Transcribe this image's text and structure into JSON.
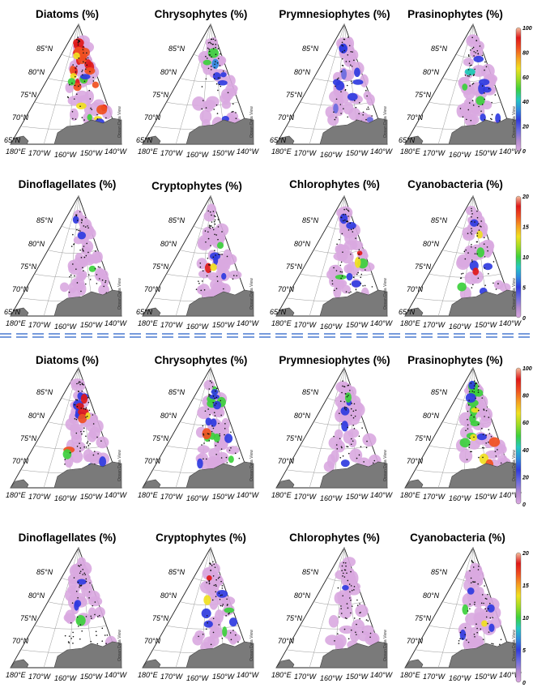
{
  "colorbar_colors": [
    "#d9a8e0",
    "#b48bd0",
    "#6a6be0",
    "#2f3be0",
    "#2f8ae0",
    "#25c8c0",
    "#3cd03c",
    "#9fdc24",
    "#f0e020",
    "#f5a020",
    "#f05020",
    "#e01818",
    "#f2c2a0"
  ],
  "colorbar_ticks": {
    "main": [
      "100",
      "80",
      "60",
      "40",
      "20",
      "0"
    ],
    "minor": [
      "20",
      "15",
      "10",
      "5",
      "0"
    ]
  },
  "map_labels": {
    "lat": [
      "85°N",
      "80°N",
      "75°N",
      "70°N",
      "65°N"
    ],
    "lon": [
      "180°E",
      "170°W",
      "160°W",
      "150°W",
      "140°W"
    ],
    "watermark": "Ocean Data View"
  },
  "chart_data": [
    {
      "section": "top",
      "type": "heatmap",
      "title": "Diatoms (%)",
      "scale": [
        0,
        100
      ],
      "dominant_level": "high (60–100) across shelf and central basin"
    },
    {
      "section": "top",
      "type": "heatmap",
      "title": "Chrysophytes (%)",
      "scale": [
        0,
        100
      ],
      "dominant_level": "low (0–20), patches up to 40"
    },
    {
      "section": "top",
      "type": "heatmap",
      "title": "Prymnesiophytes (%)",
      "scale": [
        0,
        100
      ],
      "dominant_level": "low (0–30)"
    },
    {
      "section": "top",
      "type": "heatmap",
      "title": "Prasinophytes (%)",
      "scale": [
        0,
        100
      ],
      "dominant_level": "low (0–40)"
    },
    {
      "section": "top",
      "type": "heatmap",
      "title": "Dinoflagellates (%)",
      "scale": [
        0,
        20
      ],
      "dominant_level": "near 0, isolated values ~5"
    },
    {
      "section": "top",
      "type": "heatmap",
      "title": "Cryptophytes (%)",
      "scale": [
        0,
        20
      ],
      "dominant_level": "low, southern hotspot up to 20"
    },
    {
      "section": "top",
      "type": "heatmap",
      "title": "Chlorophytes (%)",
      "scale": [
        0,
        20
      ],
      "dominant_level": "patches 10–20 near 78–80°N"
    },
    {
      "section": "top",
      "type": "heatmap",
      "title": "Cyanobacteria (%)",
      "scale": [
        0,
        20
      ],
      "dominant_level": "patches 10–20 near 75–78°N"
    },
    {
      "section": "bottom",
      "type": "heatmap",
      "title": "Diatoms (%)",
      "scale": [
        0,
        100
      ],
      "dominant_level": "mixed, high (80–100) on southern shelf"
    },
    {
      "section": "bottom",
      "type": "heatmap",
      "title": "Chrysophytes (%)",
      "scale": [
        0,
        100
      ],
      "dominant_level": "moderate (20–50)"
    },
    {
      "section": "bottom",
      "type": "heatmap",
      "title": "Prymnesiophytes (%)",
      "scale": [
        0,
        100
      ],
      "dominant_level": "low (0–30)"
    },
    {
      "section": "bottom",
      "type": "heatmap",
      "title": "Prasinophytes (%)",
      "scale": [
        0,
        100
      ],
      "dominant_level": "moderate (40–60)"
    },
    {
      "section": "bottom",
      "type": "heatmap",
      "title": "Dinoflagellates (%)",
      "scale": [
        0,
        20
      ],
      "dominant_level": "near 0, patches ~5"
    },
    {
      "section": "bottom",
      "type": "heatmap",
      "title": "Cryptophytes (%)",
      "scale": [
        0,
        20
      ],
      "dominant_level": "low, southern hotspot up to 20"
    },
    {
      "section": "bottom",
      "type": "heatmap",
      "title": "Chlorophytes (%)",
      "scale": [
        0,
        20
      ],
      "dominant_level": "near 0"
    },
    {
      "section": "bottom",
      "type": "heatmap",
      "title": "Cyanobacteria (%)",
      "scale": [
        0,
        20
      ],
      "dominant_level": "low, southern patches ~5"
    }
  ],
  "panel_blobs": [
    [
      [
        "#e01818",
        0.55
      ],
      [
        "#f05020",
        0.42
      ],
      [
        "#f0e020",
        0.2
      ],
      [
        "#3cd03c",
        0.12
      ],
      [
        "#2f3be0",
        0.1
      ]
    ],
    [
      [
        "#2f3be0",
        0.2
      ],
      [
        "#3cd03c",
        0.08
      ],
      [
        "#2f8ae0",
        0.06
      ]
    ],
    [
      [
        "#2f3be0",
        0.3
      ],
      [
        "#6a6be0",
        0.15
      ]
    ],
    [
      [
        "#2f3be0",
        0.25
      ],
      [
        "#3cd03c",
        0.12
      ],
      [
        "#25c8c0",
        0.06
      ]
    ],
    [
      [
        "#2f3be0",
        0.08
      ],
      [
        "#3cd03c",
        0.03
      ]
    ],
    [
      [
        "#2f3be0",
        0.15
      ],
      [
        "#3cd03c",
        0.06
      ],
      [
        "#e01818",
        0.04
      ],
      [
        "#f0e020",
        0.04
      ]
    ],
    [
      [
        "#2f3be0",
        0.2
      ],
      [
        "#3cd03c",
        0.1
      ],
      [
        "#e01818",
        0.04
      ],
      [
        "#f0e020",
        0.04
      ]
    ],
    [
      [
        "#2f3be0",
        0.2
      ],
      [
        "#3cd03c",
        0.1
      ],
      [
        "#e01818",
        0.03
      ],
      [
        "#f0e020",
        0.03
      ]
    ],
    [
      [
        "#2f3be0",
        0.35
      ],
      [
        "#e01818",
        0.15
      ],
      [
        "#f05020",
        0.08
      ],
      [
        "#f0e020",
        0.06
      ],
      [
        "#3cd03c",
        0.06
      ]
    ],
    [
      [
        "#3cd03c",
        0.35
      ],
      [
        "#2f3be0",
        0.3
      ],
      [
        "#f05020",
        0.05
      ]
    ],
    [
      [
        "#2f3be0",
        0.2
      ],
      [
        "#3cd03c",
        0.06
      ]
    ],
    [
      [
        "#3cd03c",
        0.45
      ],
      [
        "#f0e020",
        0.12
      ],
      [
        "#f05020",
        0.08
      ],
      [
        "#2f3be0",
        0.12
      ]
    ],
    [
      [
        "#2f3be0",
        0.12
      ],
      [
        "#3cd03c",
        0.03
      ]
    ],
    [
      [
        "#2f3be0",
        0.2
      ],
      [
        "#3cd03c",
        0.08
      ],
      [
        "#e01818",
        0.04
      ],
      [
        "#f0e020",
        0.04
      ]
    ],
    [
      [
        "#2f3be0",
        0.03
      ]
    ],
    [
      [
        "#2f3be0",
        0.2
      ],
      [
        "#3cd03c",
        0.05
      ],
      [
        "#f0e020",
        0.03
      ]
    ]
  ]
}
